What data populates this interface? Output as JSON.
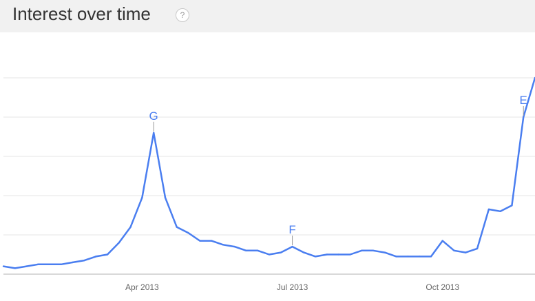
{
  "header": {
    "title": "Interest over time",
    "help_glyph": "?"
  },
  "chart_data": {
    "type": "line",
    "title": "Interest over time",
    "xlabel": "",
    "ylabel": "",
    "ylim": [
      0,
      100
    ],
    "grid": true,
    "color": "#4a7ef0",
    "x_ticks": [
      {
        "label": "Apr 2013",
        "index": 12
      },
      {
        "label": "Jul 2013",
        "index": 25
      },
      {
        "label": "Oct 2013",
        "index": 38
      }
    ],
    "series": [
      {
        "values": [
          4,
          3,
          4,
          5,
          5,
          5,
          6,
          7,
          9,
          10,
          16,
          24,
          39,
          72,
          39,
          24,
          21,
          17,
          17,
          15,
          14,
          12,
          12,
          10,
          11,
          14,
          11,
          9,
          10,
          10,
          10,
          12,
          12,
          11,
          9,
          9,
          9,
          9,
          17,
          12,
          11,
          13,
          33,
          32,
          35,
          80,
          100
        ]
      }
    ],
    "annotations": [
      {
        "label": "G",
        "index": 13
      },
      {
        "label": "F",
        "index": 25
      },
      {
        "label": "E",
        "index": 45
      }
    ]
  }
}
